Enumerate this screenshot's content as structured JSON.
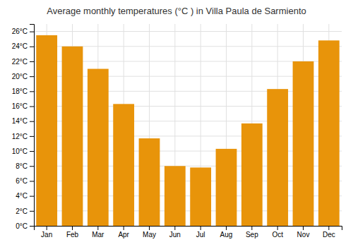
{
  "chart_data": {
    "type": "bar",
    "title": "Average monthly temperatures (°C ) in Villa Paula de Sarmiento",
    "categories": [
      "Jan",
      "Feb",
      "Mar",
      "Apr",
      "May",
      "Jun",
      "Jul",
      "Aug",
      "Sep",
      "Oct",
      "Nov",
      "Dec"
    ],
    "values": [
      25.5,
      24.0,
      21.0,
      16.3,
      11.7,
      8.0,
      7.8,
      10.3,
      13.7,
      18.3,
      22.0,
      24.8
    ],
    "color": "#E8940A",
    "ylim": [
      0,
      27
    ],
    "yticks": [
      {
        "value": 0,
        "label": "0°C"
      },
      {
        "value": 2,
        "label": "2°C"
      },
      {
        "value": 4,
        "label": "4°C"
      },
      {
        "value": 6,
        "label": "6°C"
      },
      {
        "value": 8,
        "label": "8°C"
      },
      {
        "value": 10,
        "label": "10°C"
      },
      {
        "value": 12,
        "label": "12°C"
      },
      {
        "value": 14,
        "label": "14°C"
      },
      {
        "value": 16,
        "label": "16°C"
      },
      {
        "value": 18,
        "label": "18°C"
      },
      {
        "value": 20,
        "label": "20°C"
      },
      {
        "value": 22,
        "label": "22°C"
      },
      {
        "value": 24,
        "label": "24°C"
      },
      {
        "value": 26,
        "label": "26°C"
      }
    ],
    "grid": true
  }
}
